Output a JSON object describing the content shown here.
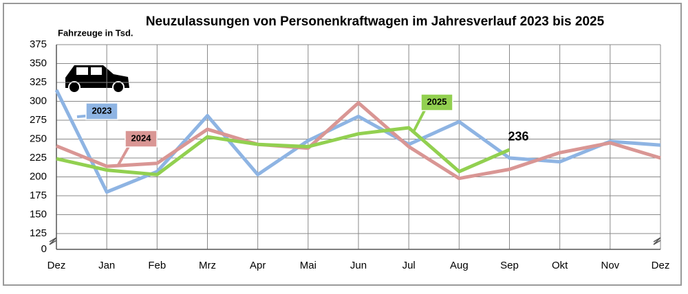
{
  "chart_data": {
    "type": "line",
    "title": "Neuzulassungen von Personenkraftwagen im Jahresverlauf 2023 bis 2025",
    "y_label": "Fahrzeuge in Tsd.",
    "categories": [
      "Dez",
      "Jan",
      "Feb",
      "Mrz",
      "Apr",
      "Mai",
      "Jun",
      "Jul",
      "Aug",
      "Sep",
      "Okt",
      "Nov",
      "Dez"
    ],
    "series": [
      {
        "name": "2023",
        "color": "#8eb4e3",
        "values": [
          315,
          180,
          207,
          281,
          203,
          248,
          280,
          243,
          273,
          225,
          220,
          247,
          242
        ]
      },
      {
        "name": "2024",
        "color": "#d99694",
        "values": [
          241,
          214,
          218,
          263,
          243,
          238,
          298,
          240,
          198,
          210,
          232,
          245,
          225
        ]
      },
      {
        "name": "2025",
        "color": "#92d050",
        "values": [
          224,
          209,
          203,
          253,
          243,
          240,
          257,
          265,
          207,
          236,
          null,
          null,
          null
        ]
      }
    ],
    "ylim": [
      0,
      375
    ],
    "axis_break": [
      0,
      125
    ],
    "yticks": [
      0,
      125,
      150,
      175,
      200,
      225,
      250,
      275,
      300,
      325,
      350,
      375
    ],
    "grid": true
  }
}
